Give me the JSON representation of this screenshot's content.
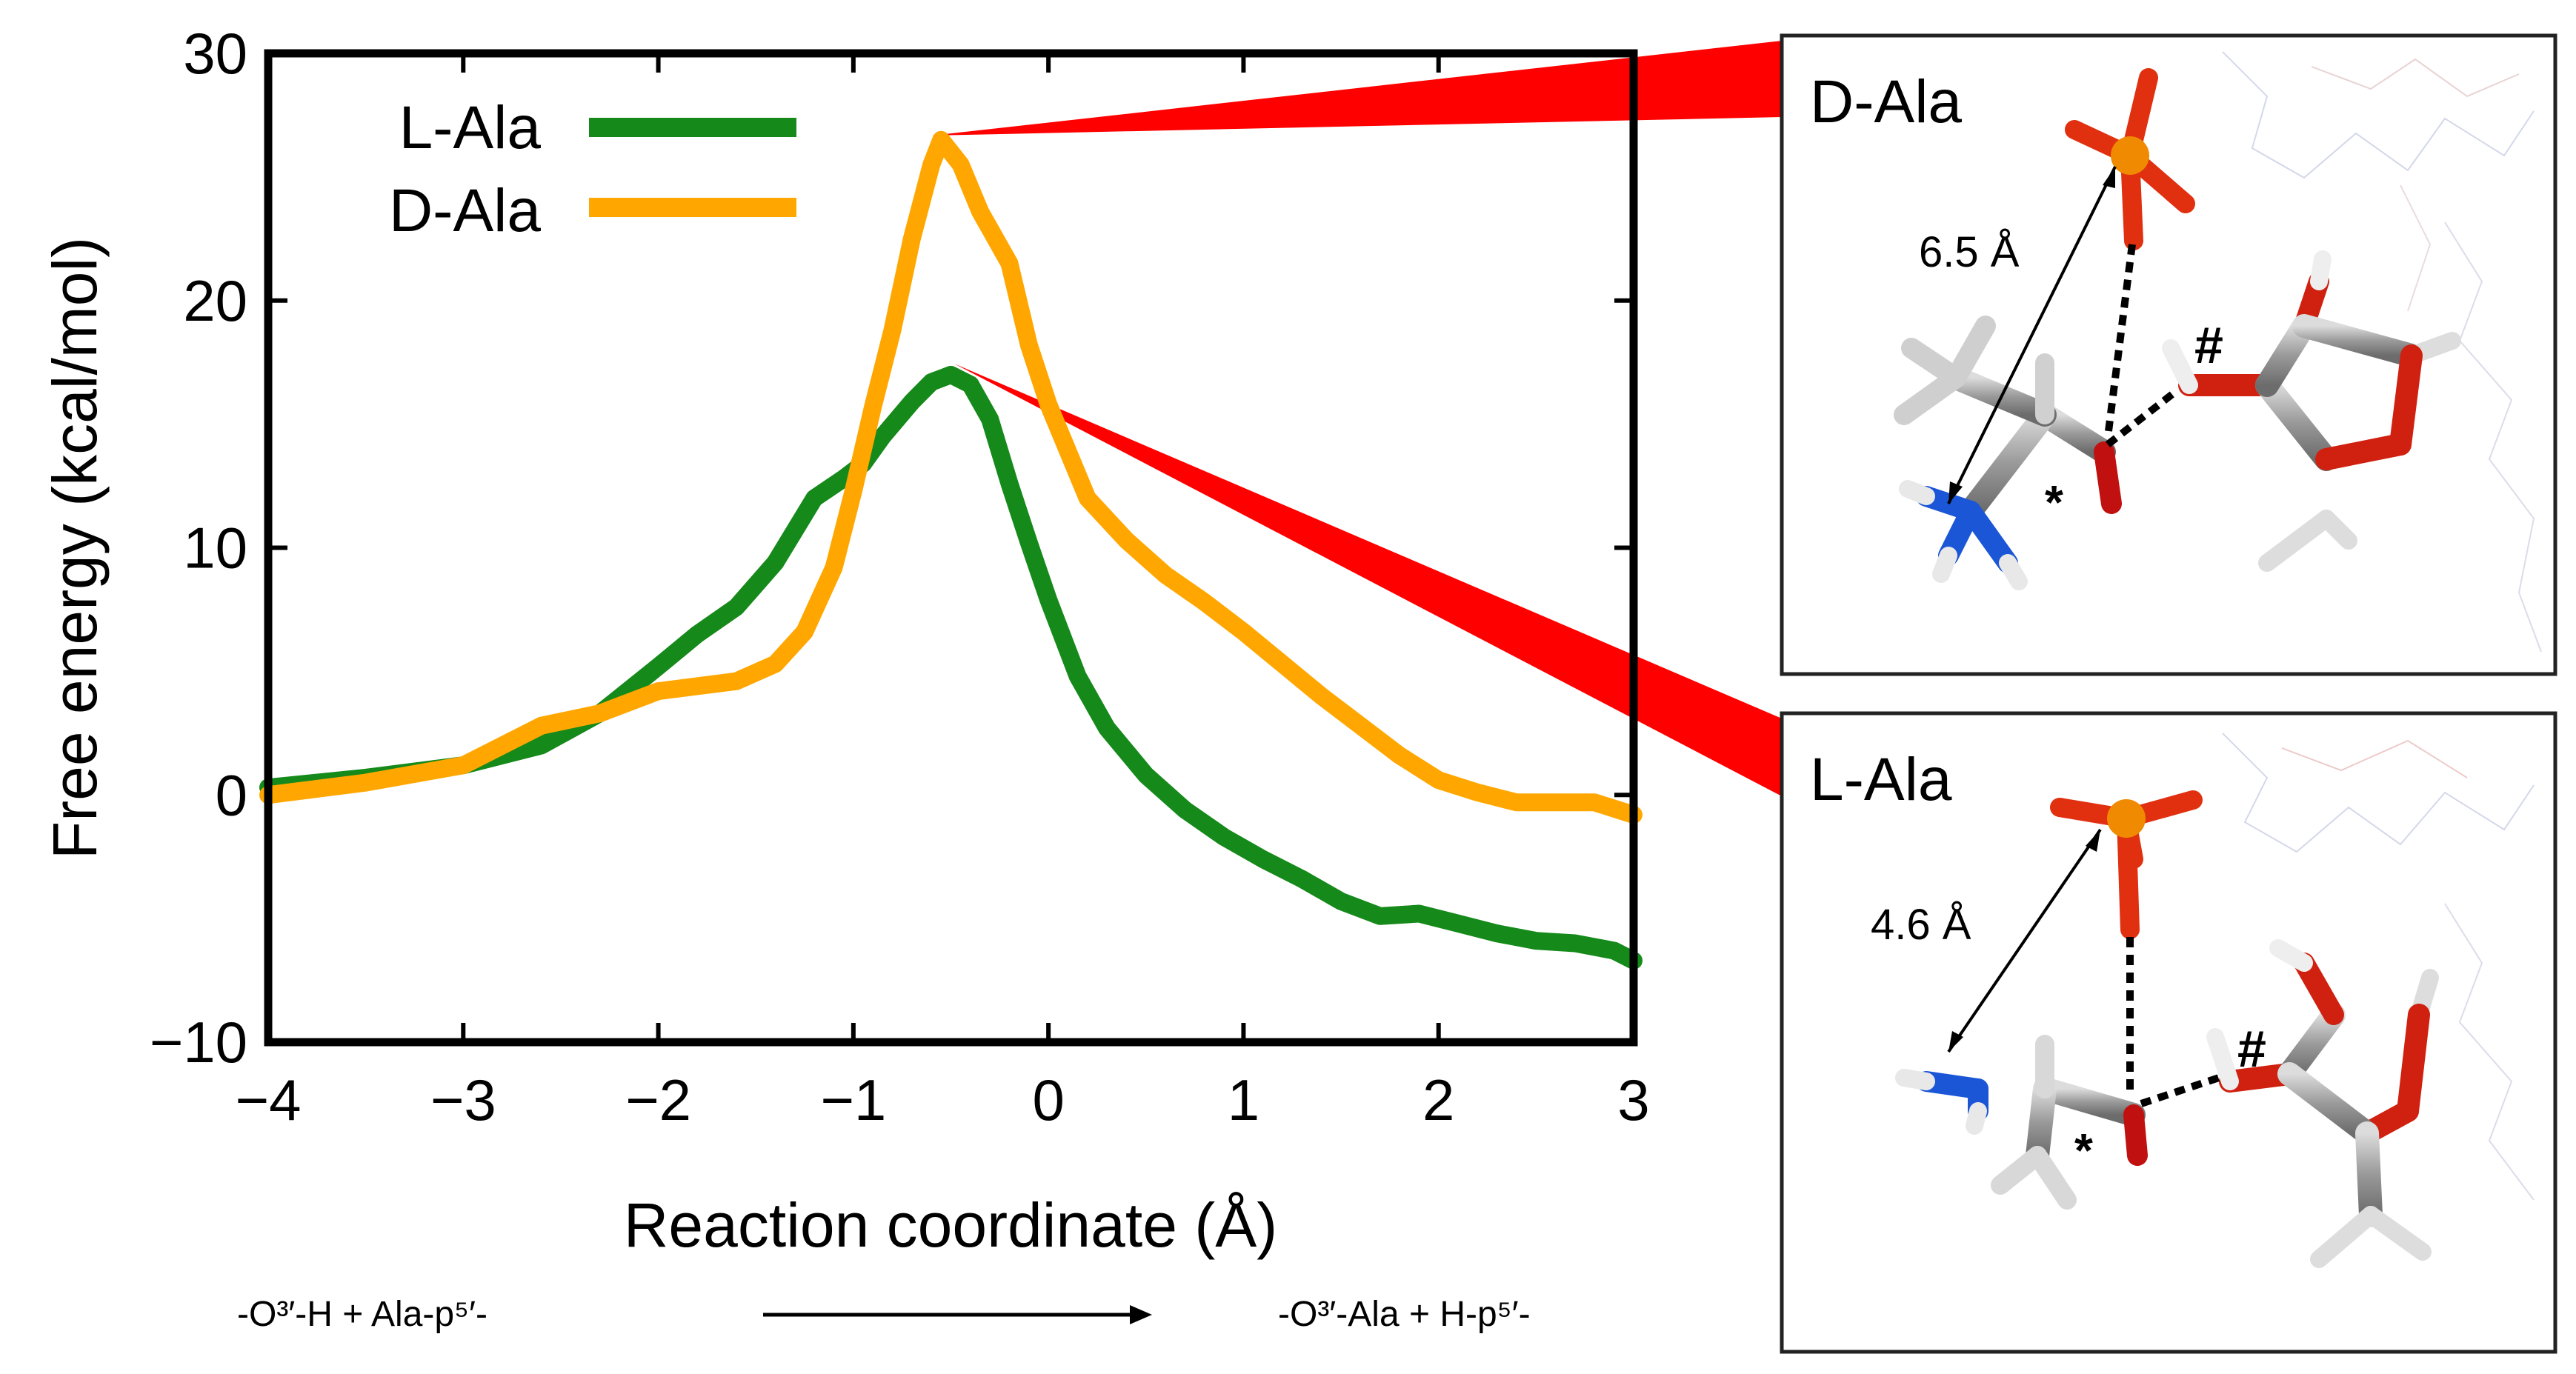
{
  "chart_data": {
    "type": "line",
    "xlabel": "Reaction coordinate (Å)",
    "ylabel": "Free energy (kcal/mol)",
    "xlim": [
      -4,
      3
    ],
    "ylim": [
      -10,
      30
    ],
    "x_ticks": [
      -4,
      -3,
      -2,
      -1,
      0,
      1,
      2,
      3
    ],
    "y_ticks": [
      -10,
      0,
      10,
      20,
      30
    ],
    "x_tick_labels": [
      "−4",
      "−3",
      "−2",
      "−1",
      "0",
      "1",
      "2",
      "3"
    ],
    "y_tick_labels": [
      "−10",
      "0",
      "10",
      "20",
      "30"
    ],
    "legend_position": "top-left",
    "series": [
      {
        "name": "L-Ala",
        "color": "#15891a",
        "x": [
          -4.0,
          -3.5,
          -3.0,
          -2.6,
          -2.3,
          -2.0,
          -1.8,
          -1.6,
          -1.4,
          -1.2,
          -1.05,
          -0.95,
          -0.85,
          -0.7,
          -0.6,
          -0.5,
          -0.4,
          -0.3,
          -0.2,
          -0.1,
          0.0,
          0.15,
          0.3,
          0.5,
          0.7,
          0.9,
          1.1,
          1.3,
          1.5,
          1.7,
          1.9,
          2.1,
          2.3,
          2.5,
          2.7,
          2.9,
          3.0
        ],
        "y": [
          0.3,
          0.7,
          1.2,
          2.0,
          3.3,
          5.2,
          6.5,
          7.6,
          9.4,
          12.0,
          12.8,
          13.4,
          14.5,
          15.9,
          16.7,
          17.0,
          16.6,
          15.2,
          12.6,
          10.2,
          7.9,
          4.8,
          2.7,
          0.8,
          -0.6,
          -1.7,
          -2.6,
          -3.4,
          -4.3,
          -4.9,
          -4.8,
          -5.2,
          -5.6,
          -5.9,
          -6.0,
          -6.3,
          -6.7
        ]
      },
      {
        "name": "D-Ala",
        "color": "#ffa700",
        "x": [
          -4.0,
          -3.5,
          -3.0,
          -2.6,
          -2.3,
          -2.0,
          -1.8,
          -1.6,
          -1.4,
          -1.25,
          -1.1,
          -1.0,
          -0.9,
          -0.8,
          -0.7,
          -0.6,
          -0.55,
          -0.45,
          -0.35,
          -0.2,
          -0.1,
          0.0,
          0.2,
          0.4,
          0.6,
          0.8,
          1.0,
          1.2,
          1.4,
          1.6,
          1.8,
          2.0,
          2.2,
          2.4,
          2.6,
          2.8,
          3.0
        ],
        "y": [
          0.0,
          0.5,
          1.2,
          2.8,
          3.3,
          4.2,
          4.4,
          4.6,
          5.3,
          6.6,
          9.2,
          12.3,
          15.7,
          18.8,
          22.5,
          25.5,
          26.5,
          25.5,
          23.6,
          21.5,
          18.2,
          15.8,
          12.0,
          10.3,
          8.9,
          7.8,
          6.6,
          5.3,
          4.0,
          2.8,
          1.6,
          0.6,
          0.1,
          -0.3,
          -0.3,
          -0.3,
          -0.8
        ]
      }
    ]
  },
  "annotation_color": "#ff0000",
  "panels": {
    "top": {
      "title": "D-Ala",
      "distance": "6.5 Å",
      "star": "*",
      "hash": "#"
    },
    "bottom": {
      "title": "L-Ala",
      "distance": "4.6 Å",
      "star": "*",
      "hash": "#"
    }
  },
  "reaction": {
    "left": "-O³′-H   +   Ala-p⁵′-",
    "right": "-O³′-Ala   +   H-p⁵′-"
  }
}
